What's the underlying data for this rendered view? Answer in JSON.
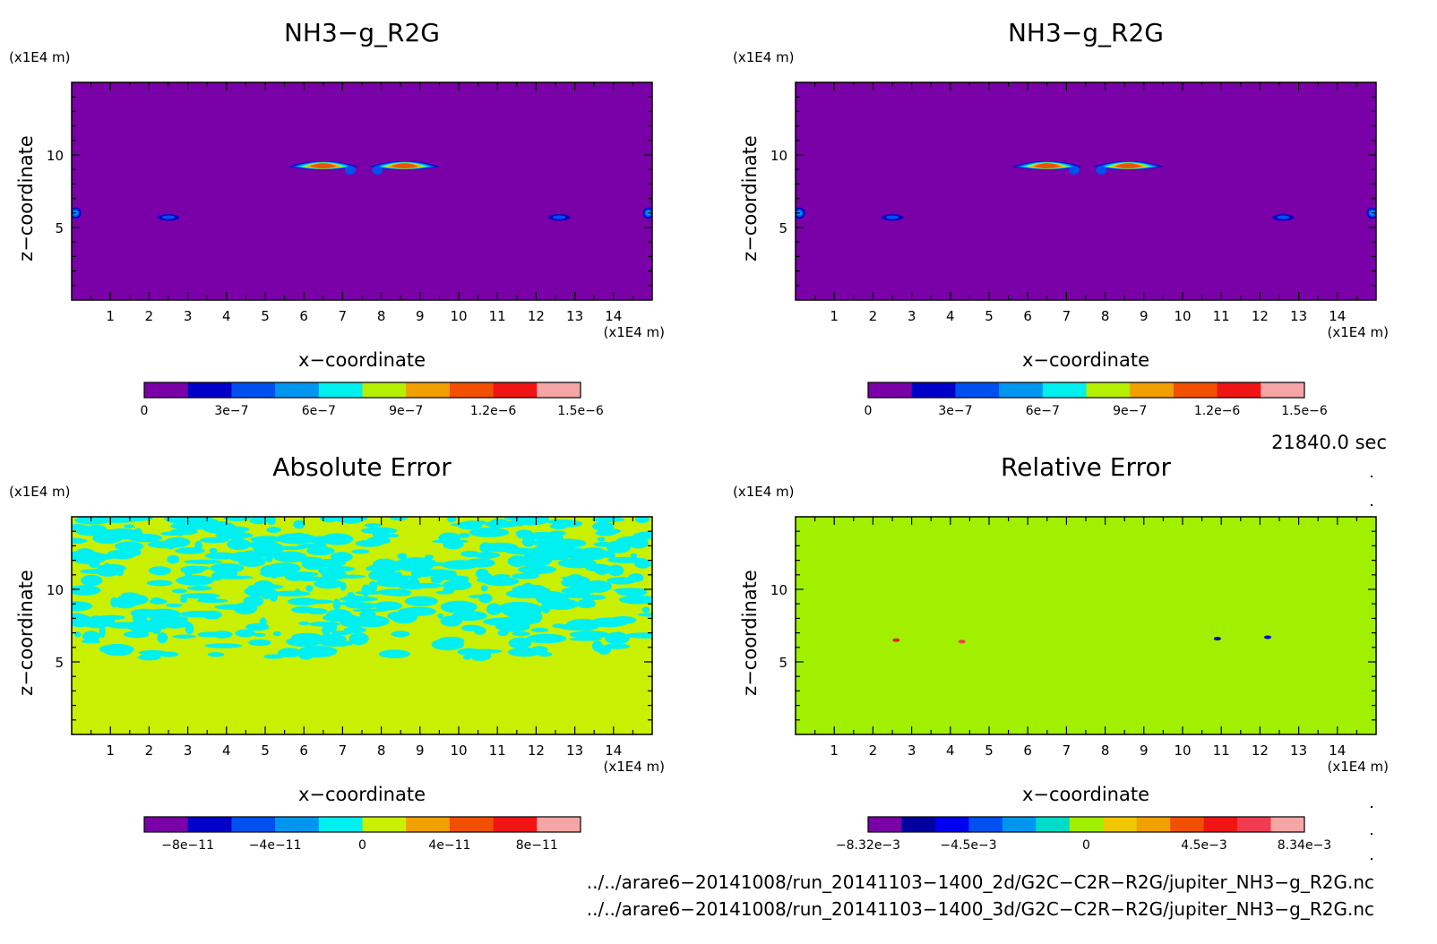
{
  "panels": [
    {
      "title": "NH3−g_R2G",
      "z_unit": "(x1E4 m)",
      "x_unit": "(x1E4 m)",
      "xlabel": "x−coordinate",
      "ylabel": "z−coordinate",
      "field": "concentration",
      "colorbar": {
        "colors": [
          "#7a00a8",
          "#0000c8",
          "#0050f0",
          "#0096f0",
          "#00f0f0",
          "#b4f000",
          "#f0a000",
          "#f05000",
          "#f01414",
          "#f5a5a5"
        ],
        "labels": [
          "0",
          "3e−7",
          "6e−7",
          "9e−7",
          "1.2e−6",
          "1.5e−6"
        ]
      }
    },
    {
      "title": "NH3−g_R2G",
      "z_unit": "(x1E4 m)",
      "x_unit": "(x1E4 m)",
      "xlabel": "x−coordinate",
      "ylabel": "z−coordinate",
      "field": "concentration",
      "colorbar": {
        "colors": [
          "#7a00a8",
          "#0000c8",
          "#0050f0",
          "#0096f0",
          "#00f0f0",
          "#b4f000",
          "#f0a000",
          "#f05000",
          "#f01414",
          "#f5a5a5"
        ],
        "labels": [
          "0",
          "3e−7",
          "6e−7",
          "9e−7",
          "1.2e−6",
          "1.5e−6"
        ]
      }
    },
    {
      "title": "Absolute Error",
      "z_unit": "(x1E4 m)",
      "x_unit": "(x1E4 m)",
      "xlabel": "x−coordinate",
      "ylabel": "z−coordinate",
      "field": "abs_error",
      "colorbar": {
        "colors": [
          "#7a00a8",
          "#0000c8",
          "#0050f0",
          "#0096f0",
          "#00f0f0",
          "#c8f000",
          "#f0a000",
          "#f05000",
          "#f01414",
          "#f5a5a5"
        ],
        "labels": [
          "−8e−11",
          "−4e−11",
          "0",
          "4e−11",
          "8e−11"
        ]
      }
    },
    {
      "title": "Relative Error",
      "z_unit": "(x1E4 m)",
      "x_unit": "(x1E4 m)",
      "xlabel": "x−coordinate",
      "ylabel": "z−coordinate",
      "field": "rel_error",
      "colorbar": {
        "colors": [
          "#7a00a8",
          "#0000a0",
          "#0000f0",
          "#0050f0",
          "#0096f0",
          "#00dcc8",
          "#a0f000",
          "#f0c800",
          "#f0a000",
          "#f05000",
          "#f01414",
          "#f03c50",
          "#f5a5a5"
        ],
        "labels": [
          "−8.32e−3",
          "−4.5e−3",
          "0",
          "4.5e−3",
          "8.34e−3"
        ]
      }
    }
  ],
  "time_label": "21840.0 sec",
  "file_paths": [
    "../../arare6−20141008/run_20141103−1400_2d/G2C−C2R−R2G/jupiter_NH3−g_R2G.nc",
    "../../arare6−20141008/run_20141103−1400_3d/G2C−C2R−R2G/jupiter_NH3−g_R2G.nc"
  ],
  "chart_data": [
    {
      "type": "heatmap",
      "title": "NH3−g_R2G",
      "xlabel": "x−coordinate",
      "ylabel": "z−coordinate",
      "x_unit": "(x1E4 m)",
      "z_unit": "(x1E4 m)",
      "xlim": [
        0,
        15
      ],
      "ylim": [
        0,
        15
      ],
      "x_ticks": [
        1,
        2,
        3,
        4,
        5,
        6,
        7,
        8,
        9,
        10,
        11,
        12,
        13,
        14
      ],
      "y_ticks": [
        5,
        10
      ],
      "colorbar_range": [
        0,
        1.5e-06
      ],
      "background_value": 0,
      "features": [
        {
          "shape": "twin lobes",
          "x_range": [
            5.5,
            9.6
          ],
          "z": 9.1,
          "max_value": 1.2e-06
        },
        {
          "shape": "small blob",
          "x": 2.5,
          "z": 5.7,
          "max_value": 4.5e-07
        },
        {
          "shape": "small blob",
          "x": 12.6,
          "z": 5.7,
          "max_value": 4.5e-07
        },
        {
          "shape": "edge blob",
          "x": 0.1,
          "z": 6.0,
          "max_value": 6e-07
        },
        {
          "shape": "edge blob",
          "x": 14.9,
          "z": 6.0,
          "max_value": 6e-07
        }
      ]
    },
    {
      "type": "heatmap",
      "title": "NH3−g_R2G",
      "xlabel": "x−coordinate",
      "ylabel": "z−coordinate",
      "x_unit": "(x1E4 m)",
      "z_unit": "(x1E4 m)",
      "xlim": [
        0,
        15
      ],
      "ylim": [
        0,
        15
      ],
      "x_ticks": [
        1,
        2,
        3,
        4,
        5,
        6,
        7,
        8,
        9,
        10,
        11,
        12,
        13,
        14
      ],
      "y_ticks": [
        5,
        10
      ],
      "colorbar_range": [
        0,
        1.5e-06
      ],
      "background_value": 0,
      "features": [
        {
          "shape": "twin lobes",
          "x_range": [
            5.5,
            9.6
          ],
          "z": 9.1,
          "max_value": 1.2e-06
        },
        {
          "shape": "small blob",
          "x": 2.5,
          "z": 5.7,
          "max_value": 4.5e-07
        },
        {
          "shape": "small blob",
          "x": 12.6,
          "z": 5.7,
          "max_value": 4.5e-07
        },
        {
          "shape": "edge blob",
          "x": 0.1,
          "z": 6.0,
          "max_value": 6e-07
        },
        {
          "shape": "edge blob",
          "x": 14.9,
          "z": 6.0,
          "max_value": 6e-07
        }
      ]
    },
    {
      "type": "heatmap",
      "title": "Absolute Error",
      "xlabel": "x−coordinate",
      "ylabel": "z−coordinate",
      "x_unit": "(x1E4 m)",
      "z_unit": "(x1E4 m)",
      "xlim": [
        0,
        15
      ],
      "ylim": [
        0,
        15
      ],
      "x_ticks": [
        1,
        2,
        3,
        4,
        5,
        6,
        7,
        8,
        9,
        10,
        11,
        12,
        13,
        14
      ],
      "y_ticks": [
        5,
        10
      ],
      "colorbar_range": [
        -1e-10,
        1e-10
      ],
      "background_value": 0,
      "noise_region_z": [
        5.2,
        15
      ],
      "noise_value": -1e-11
    },
    {
      "type": "heatmap",
      "title": "Relative Error",
      "xlabel": "x−coordinate",
      "ylabel": "z−coordinate",
      "x_unit": "(x1E4 m)",
      "z_unit": "(x1E4 m)",
      "xlim": [
        0,
        15
      ],
      "ylim": [
        0,
        15
      ],
      "x_ticks": [
        1,
        2,
        3,
        4,
        5,
        6,
        7,
        8,
        9,
        10,
        11,
        12,
        13,
        14
      ],
      "y_ticks": [
        5,
        10
      ],
      "colorbar_range": [
        -0.00832,
        0.00834
      ],
      "background_value": 0,
      "noise_region_z": [
        5.2,
        15
      ],
      "noise_value": -0.0006,
      "outliers": [
        {
          "x": 2.6,
          "z": 6.5,
          "value": 0.005
        },
        {
          "x": 4.3,
          "z": 6.4,
          "value": 0.006
        },
        {
          "x": 10.9,
          "z": 6.6,
          "value": -0.006
        },
        {
          "x": 12.2,
          "z": 6.7,
          "value": -0.005
        }
      ]
    }
  ]
}
